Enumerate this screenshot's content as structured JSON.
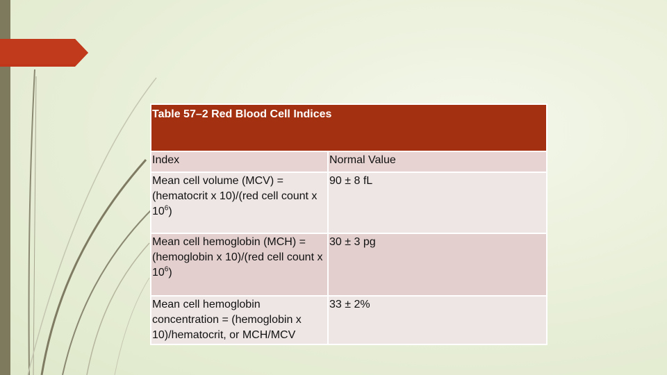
{
  "table": {
    "title": "Table 57–2 Red Blood Cell Indices",
    "headers": [
      "Index",
      "Normal Value"
    ],
    "rows": [
      {
        "index_pre": "Mean cell volume (MCV) = (hematocrit x 10)/(red cell count x 10",
        "index_sup": "6",
        "index_post": ")",
        "value": "90 ± 8 fL"
      },
      {
        "index_pre": "Mean cell hemoglobin (MCH) = (hemoglobin x 10)/(red cell count x 10",
        "index_sup": "6",
        "index_post": ")",
        "value": "30 ± 3 pg"
      },
      {
        "index_pre": "Mean cell hemoglobin concentration = (hemoglobin x 10)/hematocrit, or MCH/MCV",
        "index_sup": "",
        "index_post": "",
        "value": "33 ± 2%"
      }
    ]
  },
  "colors": {
    "title_bg": "#a33010",
    "accent_tab": "#c0361a",
    "left_bar": "#7d7a5e"
  }
}
